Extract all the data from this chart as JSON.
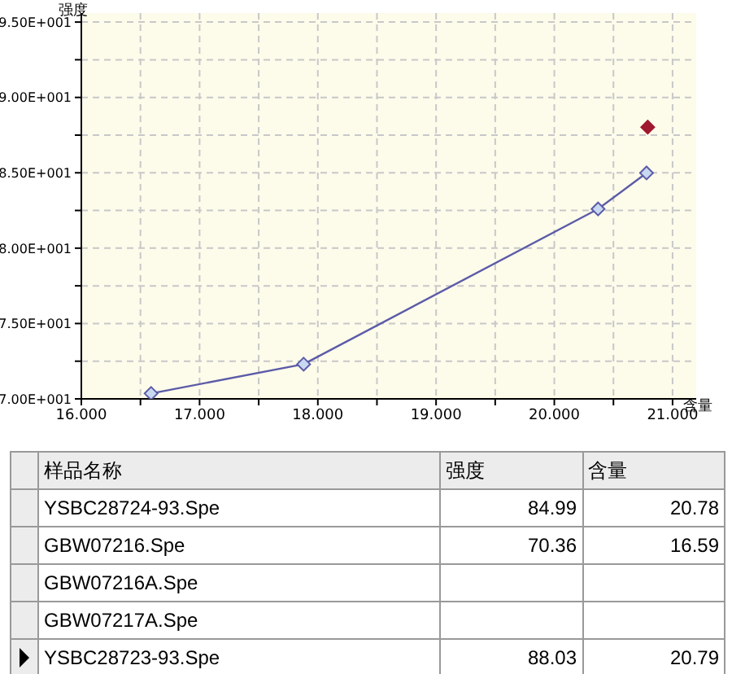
{
  "chart_data": {
    "type": "line",
    "ylabel": "强度",
    "xlabel": "含量",
    "xlim": [
      16,
      21.2
    ],
    "ylim": [
      70,
      95.6
    ],
    "xticks": [
      {
        "value": 16,
        "label": "16.000"
      },
      {
        "value": 16.5,
        "label": null
      },
      {
        "value": 17,
        "label": "17.000"
      },
      {
        "value": 17.5,
        "label": null
      },
      {
        "value": 18,
        "label": "18.000"
      },
      {
        "value": 18.5,
        "label": null
      },
      {
        "value": 19,
        "label": "19.000"
      },
      {
        "value": 19.5,
        "label": null
      },
      {
        "value": 20,
        "label": "20.000"
      },
      {
        "value": 20.5,
        "label": null
      },
      {
        "value": 21,
        "label": "21.000"
      }
    ],
    "yticks": [
      {
        "value": 70,
        "label": "7.00E+001"
      },
      {
        "value": 72.5,
        "label": null
      },
      {
        "value": 75,
        "label": "7.50E+001"
      },
      {
        "value": 77.5,
        "label": null
      },
      {
        "value": 80,
        "label": "8.00E+001"
      },
      {
        "value": 82.5,
        "label": null
      },
      {
        "value": 85,
        "label": "8.50E+001"
      },
      {
        "value": 87.5,
        "label": null
      },
      {
        "value": 90,
        "label": "9.00E+001"
      },
      {
        "value": 92.5,
        "label": null
      },
      {
        "value": 95,
        "label": "9.50E+001"
      }
    ],
    "grid": true,
    "marker": "diamond",
    "line_style": "solid",
    "series": [
      {
        "type": "line",
        "color": "#5b5ba8",
        "x": [
          16.59,
          17.88,
          20.37,
          20.78
        ],
        "values": [
          70.36,
          72.3,
          82.6,
          84.99
        ]
      },
      {
        "type": "scatter",
        "color": "#a01830",
        "x": [
          20.79
        ],
        "values": [
          88.03
        ]
      }
    ],
    "annotations": [
      "样品名称",
      "强度",
      "含量",
      "YSBC28724-93.Spe",
      "84.99",
      "20.78",
      "GBW07216.Spe",
      "70.36",
      "16.59",
      "GBW07216A.Spe",
      null,
      null,
      "GBW07217A.Spe",
      null,
      null,
      "YSBC28723-93.Spe",
      "88.03",
      "20.79"
    ]
  }
}
